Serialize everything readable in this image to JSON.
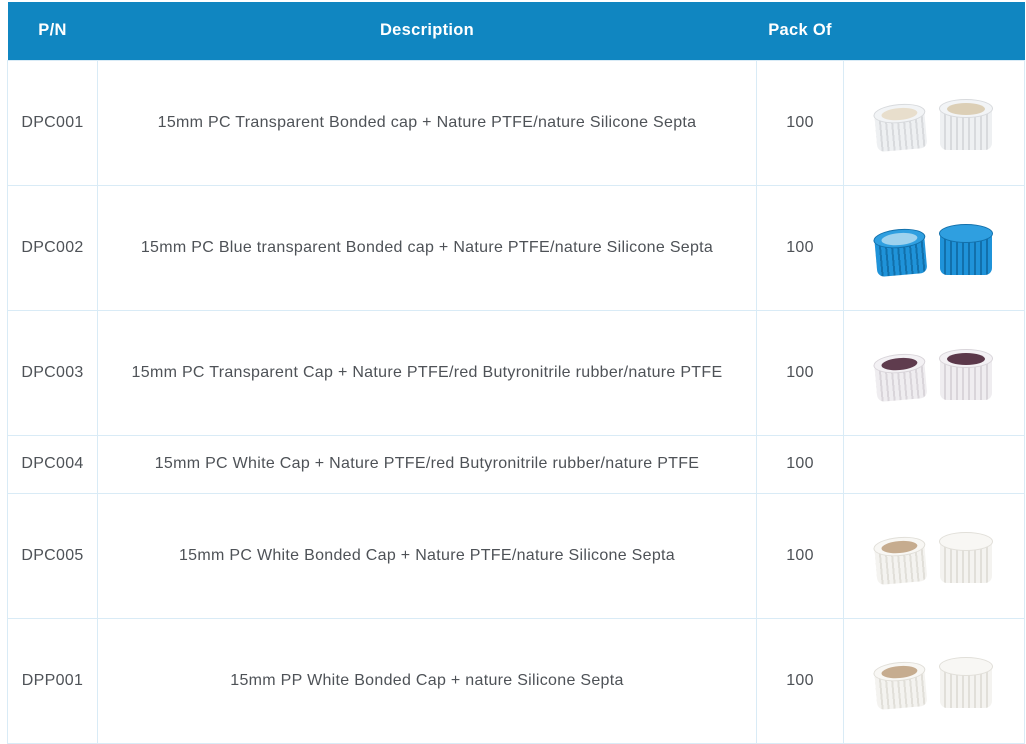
{
  "colors": {
    "header_bg": "#1086c1",
    "header_text": "#ffffff",
    "body_text": "#4e5257",
    "row_border": "#d9ebf6"
  },
  "table": {
    "columns": [
      {
        "key": "pn",
        "label": "P/N"
      },
      {
        "key": "description",
        "label": "Description"
      },
      {
        "key": "pack_of",
        "label": "Pack Of"
      },
      {
        "key": "image",
        "label": ""
      }
    ],
    "rows": [
      {
        "pn": "DPC001",
        "description": "15mm PC Transparent Bonded  cap + Nature PTFE/nature Silicone Septa",
        "pack_of": "100",
        "image": {
          "present": true,
          "name": "transparent-caps-photo",
          "cap_base": "#eef0f2",
          "cap_rib": "#d8dadd",
          "cap_top": "#f2f4f6",
          "left_interior": "#e8decc",
          "right_top_septa": "#dccfb6"
        }
      },
      {
        "pn": "DPC002",
        "description": "15mm PC Blue transparent Bonded  cap + Nature PTFE/nature Silicone Septa",
        "pack_of": "100",
        "image": {
          "present": true,
          "name": "blue-caps-photo",
          "cap_base": "#1f93d9",
          "cap_rib": "#1270ab",
          "cap_top": "#2f9fe0",
          "left_interior": "#9ed2ee",
          "right_top_septa": null
        }
      },
      {
        "pn": "DPC003",
        "description": "15mm PC Transparent Cap + Nature PTFE/red Butyronitrile rubber/nature PTFE",
        "pack_of": "100",
        "image": {
          "present": true,
          "name": "transparent-caps-maroon-septa-photo",
          "cap_base": "#efedf0",
          "cap_rib": "#d9d5da",
          "cap_top": "#f3f1f4",
          "left_interior": "#5f3c4e",
          "right_top_septa": "#5b384a"
        }
      },
      {
        "pn": "DPC004",
        "description": "15mm PC White Cap + Nature PTFE/red Butyronitrile rubber/nature PTFE",
        "pack_of": "100",
        "image": {
          "present": false
        }
      },
      {
        "pn": "DPC005",
        "description": "15mm PC White Bonded Cap + Nature PTFE/nature Silicone Septa",
        "pack_of": "100",
        "image": {
          "present": true,
          "name": "white-caps-photo",
          "cap_base": "#f4f3f0",
          "cap_rib": "#e1dfd9",
          "cap_top": "#f8f7f4",
          "left_interior": "#c6ac8f",
          "right_top_septa": null
        }
      },
      {
        "pn": "DPP001",
        "description": "15mm PP White Bonded Cap + nature Silicone Septa",
        "pack_of": "100",
        "image": {
          "present": true,
          "name": "white-caps-photo",
          "cap_base": "#f4f3f0",
          "cap_rib": "#e1dfd9",
          "cap_top": "#f8f7f4",
          "left_interior": "#c6ac8f",
          "right_top_septa": null
        }
      }
    ]
  }
}
